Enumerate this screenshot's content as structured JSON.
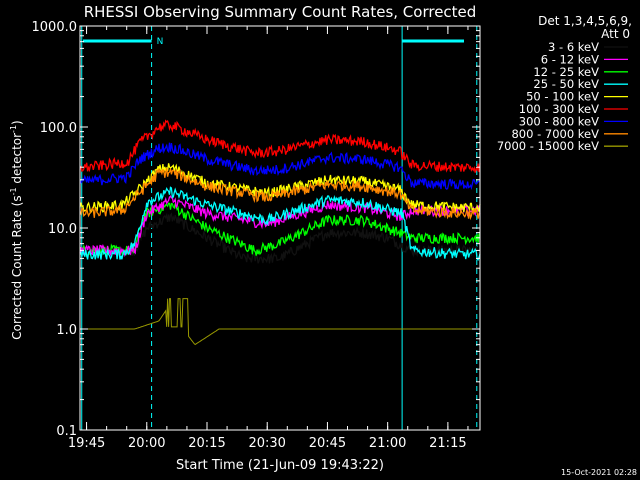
{
  "chart_data": {
    "type": "line",
    "title": "RHESSI Observing Summary Count Rates, Corrected",
    "xlabel": "Start Time (21-Jun-09 19:43:22)",
    "ylabel_main": "Corrected Count Rate (s",
    "ylabel_sup": "-1",
    "ylabel_mid": " detector",
    "ylabel_sup2": "-1",
    "ylabel_end": ")",
    "yscale": "log",
    "ylim": [
      0.1,
      1000
    ],
    "xlim": [
      "19:43:22",
      "21:23:00"
    ],
    "x_ticks": [
      "19:45",
      "20:00",
      "20:15",
      "20:30",
      "20:45",
      "21:00",
      "21:15"
    ],
    "y_ticks": [
      "0.1",
      "1.0",
      "10.0",
      "100.0",
      "1000.0"
    ],
    "legend_header": [
      "Det 1,3,4,5,6,9,",
      "Att 0"
    ],
    "legend_placement": "top-right",
    "flag_label": "N",
    "footer_timestamp": "15-Oct-2021 02:28",
    "series": [
      {
        "name": "3 - 6 keV",
        "color": "#000000",
        "profile": [
          [
            19.75,
            6
          ],
          [
            19.95,
            6
          ],
          [
            19.98,
            8
          ],
          [
            20.0,
            10
          ],
          [
            20.1,
            13
          ],
          [
            20.25,
            8
          ],
          [
            20.4,
            5
          ],
          [
            20.55,
            5
          ],
          [
            20.75,
            9
          ],
          [
            20.9,
            9
          ],
          [
            21.0,
            8
          ],
          [
            21.1,
            6
          ],
          [
            21.3,
            6
          ]
        ]
      },
      {
        "name": "6 - 12 keV",
        "color": "#ff00ff",
        "profile": [
          [
            19.75,
            6
          ],
          [
            19.95,
            6
          ],
          [
            19.98,
            10
          ],
          [
            20.0,
            14
          ],
          [
            20.1,
            19
          ],
          [
            20.25,
            14
          ],
          [
            20.5,
            11
          ],
          [
            20.75,
            17
          ],
          [
            20.9,
            16
          ],
          [
            21.06,
            13
          ],
          [
            21.1,
            15
          ],
          [
            21.3,
            15
          ]
        ]
      },
      {
        "name": "12 - 25 keV",
        "color": "#00ff00",
        "profile": [
          [
            19.75,
            6
          ],
          [
            19.95,
            6
          ],
          [
            19.98,
            12
          ],
          [
            20.0,
            14
          ],
          [
            20.1,
            17
          ],
          [
            20.25,
            10
          ],
          [
            20.45,
            6
          ],
          [
            20.55,
            7
          ],
          [
            20.75,
            12
          ],
          [
            20.9,
            12
          ],
          [
            21.05,
            9
          ],
          [
            21.1,
            8
          ],
          [
            21.3,
            8
          ]
        ]
      },
      {
        "name": "25 - 50 keV",
        "color": "#00ffff",
        "profile": [
          [
            19.75,
            5.5
          ],
          [
            19.9,
            5.5
          ],
          [
            19.95,
            7
          ],
          [
            20.0,
            18
          ],
          [
            20.1,
            23
          ],
          [
            20.25,
            17
          ],
          [
            20.5,
            12
          ],
          [
            20.75,
            19
          ],
          [
            20.9,
            18
          ],
          [
            21.06,
            14
          ],
          [
            21.1,
            6
          ],
          [
            21.3,
            5.5
          ]
        ]
      },
      {
        "name": "50 - 100 keV",
        "color": "#ffff00",
        "profile": [
          [
            19.75,
            16
          ],
          [
            19.9,
            17
          ],
          [
            19.95,
            22
          ],
          [
            20.05,
            38
          ],
          [
            20.1,
            40
          ],
          [
            20.25,
            28
          ],
          [
            20.5,
            22
          ],
          [
            20.75,
            30
          ],
          [
            20.9,
            29
          ],
          [
            21.05,
            24
          ],
          [
            21.1,
            17
          ],
          [
            21.3,
            16
          ]
        ]
      },
      {
        "name": "100 - 300 keV",
        "color": "#ff0000",
        "profile": [
          [
            19.75,
            40
          ],
          [
            19.92,
            45
          ],
          [
            19.97,
            70
          ],
          [
            20.05,
            100
          ],
          [
            20.1,
            105
          ],
          [
            20.25,
            75
          ],
          [
            20.45,
            55
          ],
          [
            20.55,
            58
          ],
          [
            20.75,
            75
          ],
          [
            20.9,
            72
          ],
          [
            21.05,
            58
          ],
          [
            21.1,
            42
          ],
          [
            21.3,
            40
          ]
        ]
      },
      {
        "name": "300 - 800 keV",
        "color": "#0000ff",
        "profile": [
          [
            19.75,
            29
          ],
          [
            19.92,
            32
          ],
          [
            19.97,
            48
          ],
          [
            20.05,
            62
          ],
          [
            20.1,
            64
          ],
          [
            20.25,
            48
          ],
          [
            20.45,
            37
          ],
          [
            20.55,
            38
          ],
          [
            20.75,
            50
          ],
          [
            20.9,
            48
          ],
          [
            21.05,
            40
          ],
          [
            21.1,
            28
          ],
          [
            21.3,
            27
          ]
        ]
      },
      {
        "name": "800 - 7000 keV",
        "color": "#ff8800",
        "profile": [
          [
            19.75,
            14
          ],
          [
            19.9,
            15
          ],
          [
            19.95,
            20
          ],
          [
            20.05,
            35
          ],
          [
            20.1,
            36
          ],
          [
            20.25,
            26
          ],
          [
            20.5,
            20
          ],
          [
            20.75,
            27
          ],
          [
            20.9,
            26
          ],
          [
            21.05,
            22
          ],
          [
            21.1,
            15
          ],
          [
            21.3,
            14
          ]
        ]
      },
      {
        "name": "7000 - 15000 keV",
        "color": "#999900",
        "profile": [
          [
            19.75,
            1.0
          ],
          [
            19.95,
            1.0
          ],
          [
            20.05,
            1.2
          ],
          [
            20.1,
            1.8
          ],
          [
            20.15,
            1.0
          ],
          [
            20.2,
            0.7
          ],
          [
            20.3,
            1.0
          ],
          [
            20.8,
            1.0
          ],
          [
            21.1,
            1.0
          ],
          [
            21.3,
            1.0
          ]
        ]
      }
    ]
  }
}
